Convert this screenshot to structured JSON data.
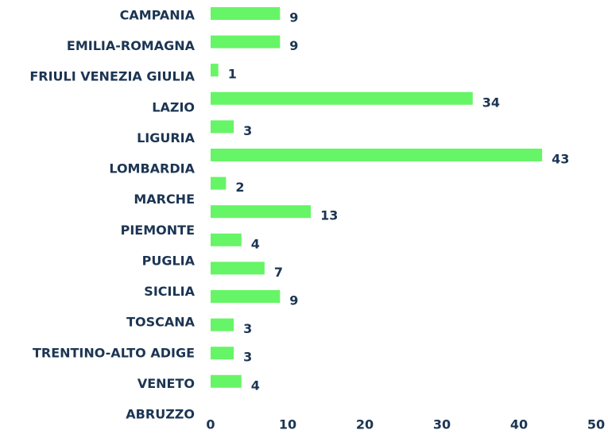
{
  "chart_data": {
    "type": "barh",
    "categories": [
      "CAMPANIA",
      "EMILIA-ROMAGNA",
      "FRIULI VENEZIA GIULIA",
      "LAZIO",
      "LIGURIA",
      "LOMBARDIA",
      "MARCHE",
      "PIEMONTE",
      "PUGLIA",
      "SICILIA",
      "TOSCANA",
      "TRENTINO-ALTO ADIGE",
      "VENETO",
      "ABRUZZO"
    ],
    "values": [
      9,
      9,
      1,
      34,
      3,
      43,
      2,
      13,
      4,
      7,
      9,
      3,
      3,
      4
    ],
    "color": "#66f566",
    "xlim": [
      0,
      50
    ],
    "xticks": [
      0,
      10,
      20,
      30,
      40,
      50
    ],
    "grid": false
  }
}
